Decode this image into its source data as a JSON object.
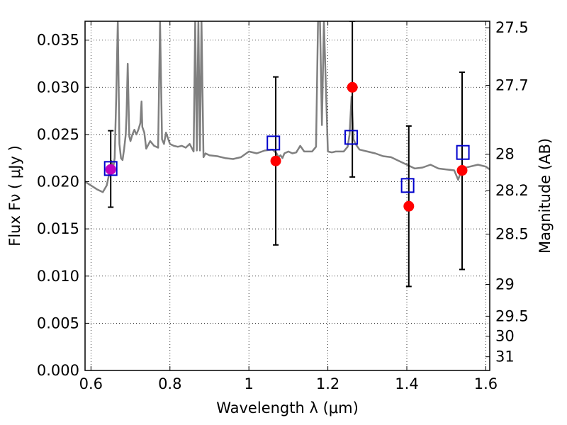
{
  "chart_data": {
    "type": "scatter",
    "xlabel": "Wavelength  λ (μm)",
    "ylabel": "Flux  Fν  ( μJy )",
    "ylabel_right": "Magnitude (AB)",
    "xlim": [
      0.585,
      1.61
    ],
    "ylim": [
      0.0,
      0.037
    ],
    "grid": true,
    "grid_style": "dotted",
    "x_ticks": [
      {
        "value": 0.6,
        "label": "0.6"
      },
      {
        "value": 0.8,
        "label": "0.8"
      },
      {
        "value": 1.0,
        "label": "1"
      },
      {
        "value": 1.2,
        "label": "1.2"
      },
      {
        "value": 1.4,
        "label": "1.4"
      },
      {
        "value": 1.6,
        "label": "1.6"
      }
    ],
    "y_ticks": [
      {
        "value": 0.0,
        "label": "0.000"
      },
      {
        "value": 0.005,
        "label": "0.005"
      },
      {
        "value": 0.01,
        "label": "0.010"
      },
      {
        "value": 0.015,
        "label": "0.015"
      },
      {
        "value": 0.02,
        "label": "0.020"
      },
      {
        "value": 0.025,
        "label": "0.025"
      },
      {
        "value": 0.03,
        "label": "0.030"
      },
      {
        "value": 0.035,
        "label": "0.035"
      }
    ],
    "y_right_ticks": [
      {
        "label": "27.5",
        "flux": 0.03631
      },
      {
        "label": "27.7",
        "flux": 0.0302
      },
      {
        "label": "28",
        "flux": 0.02291
      },
      {
        "label": "28.2",
        "flux": 0.01905
      },
      {
        "label": "28.5",
        "flux": 0.01445
      },
      {
        "label": "29",
        "flux": 0.00912
      },
      {
        "label": "29.5",
        "flux": 0.00575
      },
      {
        "label": "30",
        "flux": 0.00363
      },
      {
        "label": "31",
        "flux": 0.00145
      }
    ],
    "colors": {
      "observed": "#ff0000",
      "model": "#0000cc",
      "spectrum": "#808080",
      "errorbar": "#000000",
      "overlap": "#bf00bf"
    },
    "series": [
      {
        "type": "line",
        "x": [
          0.585,
          0.6,
          0.615,
          0.63,
          0.64,
          0.648,
          0.652,
          0.656,
          0.66,
          0.664,
          0.668,
          0.672,
          0.676,
          0.68,
          0.684,
          0.688,
          0.69,
          0.693,
          0.697,
          0.7,
          0.705,
          0.71,
          0.715,
          0.72,
          0.725,
          0.728,
          0.73,
          0.735,
          0.74,
          0.75,
          0.76,
          0.77,
          0.775,
          0.78,
          0.785,
          0.79,
          0.8,
          0.81,
          0.82,
          0.83,
          0.84,
          0.85,
          0.86,
          0.864,
          0.868,
          0.872,
          0.876,
          0.88,
          0.885,
          0.89,
          0.9,
          0.92,
          0.94,
          0.96,
          0.98,
          1.0,
          1.02,
          1.04,
          1.06,
          1.07,
          1.075,
          1.08,
          1.085,
          1.09,
          1.1,
          1.11,
          1.12,
          1.13,
          1.14,
          1.15,
          1.16,
          1.17,
          1.175,
          1.18,
          1.185,
          1.19,
          1.2,
          1.21,
          1.22,
          1.24,
          1.25,
          1.255,
          1.26,
          1.265,
          1.27,
          1.28,
          1.3,
          1.32,
          1.34,
          1.36,
          1.38,
          1.4,
          1.42,
          1.44,
          1.46,
          1.48,
          1.5,
          1.52,
          1.53,
          1.54,
          1.56,
          1.58,
          1.6,
          1.61
        ],
        "y": [
          0.02,
          0.0196,
          0.0192,
          0.0189,
          0.0196,
          0.0212,
          0.0222,
          0.0214,
          0.0225,
          0.029,
          0.037,
          0.024,
          0.0225,
          0.0223,
          0.0235,
          0.025,
          0.027,
          0.0325,
          0.0248,
          0.0243,
          0.025,
          0.0255,
          0.025,
          0.0255,
          0.0262,
          0.0285,
          0.0258,
          0.0252,
          0.0235,
          0.0243,
          0.0238,
          0.0236,
          0.037,
          0.0245,
          0.024,
          0.0252,
          0.024,
          0.0238,
          0.0237,
          0.0238,
          0.0236,
          0.024,
          0.0232,
          0.037,
          0.0233,
          0.037,
          0.0233,
          0.037,
          0.0226,
          0.023,
          0.0228,
          0.0227,
          0.0225,
          0.0224,
          0.0226,
          0.0232,
          0.023,
          0.0233,
          0.0234,
          0.023,
          0.0226,
          0.0228,
          0.0225,
          0.023,
          0.0232,
          0.023,
          0.0231,
          0.0238,
          0.0232,
          0.0232,
          0.0232,
          0.0237,
          0.037,
          0.037,
          0.026,
          0.037,
          0.0232,
          0.0231,
          0.0232,
          0.0232,
          0.0237,
          0.025,
          0.029,
          0.0245,
          0.024,
          0.0234,
          0.0232,
          0.023,
          0.0227,
          0.0226,
          0.0222,
          0.0218,
          0.0214,
          0.0215,
          0.0218,
          0.0214,
          0.0213,
          0.0212,
          0.0202,
          0.0214,
          0.0216,
          0.0218,
          0.0216,
          0.0213
        ]
      },
      {
        "name": "",
        "type": "scatter",
        "marker": "circle",
        "x": [
          0.65,
          1.068,
          1.262,
          1.405,
          1.54
        ],
        "y": [
          0.0213,
          0.0222,
          0.03,
          0.0174,
          0.0212
        ],
        "err_low": [
          0.0173,
          0.0133,
          0.0205,
          0.0089,
          0.0107
        ],
        "err_high": [
          0.0254,
          0.0311,
          0.037,
          0.0259,
          0.0316
        ]
      },
      {
        "name": "",
        "type": "scatter",
        "marker": "open-square",
        "x": [
          0.65,
          1.062,
          1.259,
          1.402,
          1.542
        ],
        "y": [
          0.0214,
          0.0241,
          0.0247,
          0.0196,
          0.0231
        ]
      }
    ]
  }
}
